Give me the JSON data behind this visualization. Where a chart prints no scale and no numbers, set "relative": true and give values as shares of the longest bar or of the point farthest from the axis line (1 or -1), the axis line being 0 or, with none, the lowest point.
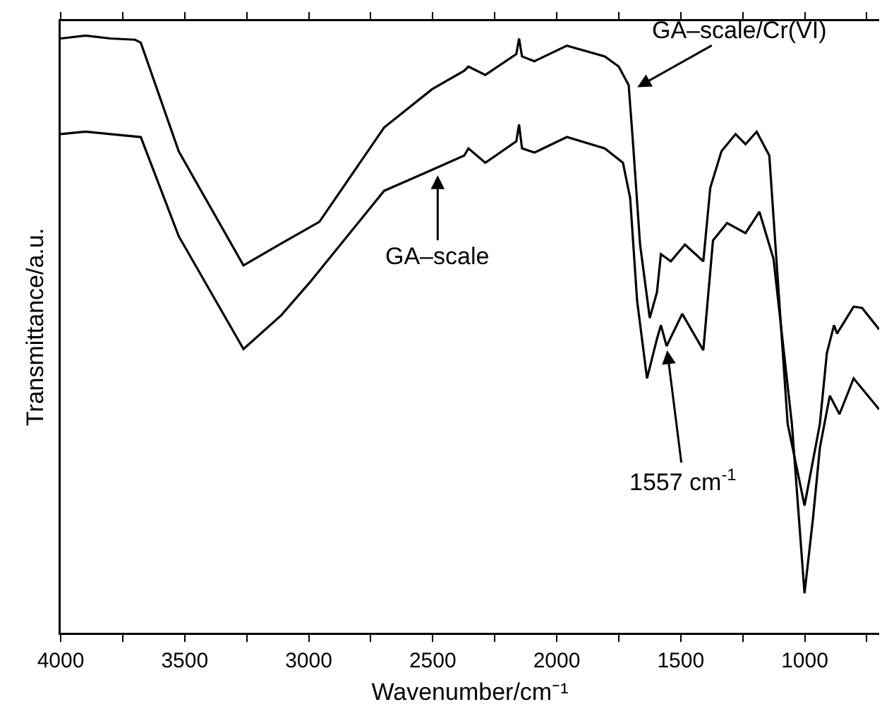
{
  "chart_data": {
    "type": "line",
    "xlabel": "Wavenumber/cm⁻¹",
    "ylabel": "Transmittance/a.u.",
    "relative": true,
    "xlim": [
      4000,
      700
    ],
    "xticks": [
      4000,
      {
        "value": 3750,
        "label": null
      },
      3500,
      {
        "value": 3250,
        "label": null
      },
      3000,
      {
        "value": 2750,
        "label": null
      },
      2500,
      {
        "value": 2250,
        "label": null
      },
      2000,
      {
        "value": 1750,
        "label": null
      },
      1500,
      {
        "value": 1250,
        "label": null
      },
      1000,
      {
        "value": 750,
        "label": null
      }
    ],
    "grid": false,
    "series": [
      {
        "color": "#000000",
        "x": [
          4000,
          3900,
          3800,
          3700,
          3677,
          3524,
          3263,
          3110,
          2957,
          2696,
          2503,
          2373,
          2356,
          2288,
          2163,
          2152,
          2140,
          2090,
          1959,
          1806,
          1750,
          1710,
          1693,
          1664,
          1625,
          1596,
          1580,
          1540,
          1483,
          1409,
          1381,
          1336,
          1279,
          1239,
          1194,
          1143,
          1069,
          1001,
          939,
          911,
          882,
          870,
          803,
          769,
          700
        ],
        "values": [
          0.995,
          1,
          0.995,
          0.993,
          0.988,
          0.806,
          0.615,
          0.652,
          0.688,
          0.846,
          0.91,
          0.941,
          0.948,
          0.934,
          0.969,
          0.995,
          0.965,
          0.957,
          0.983,
          0.965,
          0.948,
          0.917,
          0.823,
          0.65,
          0.527,
          0.57,
          0.634,
          0.622,
          0.65,
          0.622,
          0.745,
          0.806,
          0.835,
          0.818,
          0.839,
          0.799,
          0.35,
          0.213,
          0.35,
          0.468,
          0.515,
          0.501,
          0.546,
          0.544,
          0.508
        ]
      },
      {
        "color": "#000000",
        "x": [
          4000,
          3900,
          3800,
          3677,
          3524,
          3263,
          3110,
          2997,
          2696,
          2503,
          2373,
          2356,
          2288,
          2163,
          2152,
          2140,
          2090,
          1959,
          1806,
          1733,
          1704,
          1676,
          1636,
          1596,
          1580,
          1557,
          1494,
          1409,
          1370,
          1313,
          1239,
          1183,
          1126,
          1052,
          1001,
          967,
          939,
          899,
          860,
          803,
          700
        ],
        "values": [
          0.835,
          0.839,
          0.835,
          0.83,
          0.664,
          0.475,
          0.532,
          0.586,
          0.74,
          0.775,
          0.799,
          0.811,
          0.787,
          0.823,
          0.851,
          0.811,
          0.804,
          0.83,
          0.811,
          0.787,
          0.728,
          0.556,
          0.426,
          0.492,
          0.515,
          0.48,
          0.534,
          0.473,
          0.657,
          0.686,
          0.669,
          0.705,
          0.626,
          0.35,
          0.066,
          0.191,
          0.31,
          0.397,
          0.366,
          0.426,
          0.374
        ]
      }
    ],
    "annotations": [
      {
        "text": "GA–scale/Cr(VI)",
        "x": 1690,
        "y": 0.91
      },
      {
        "text": "GA–scale",
        "x": 2480,
        "y": 0.773
      },
      {
        "text": "1557 cm$^{-1}$",
        "x": 1557,
        "y": 0.48
      }
    ]
  }
}
